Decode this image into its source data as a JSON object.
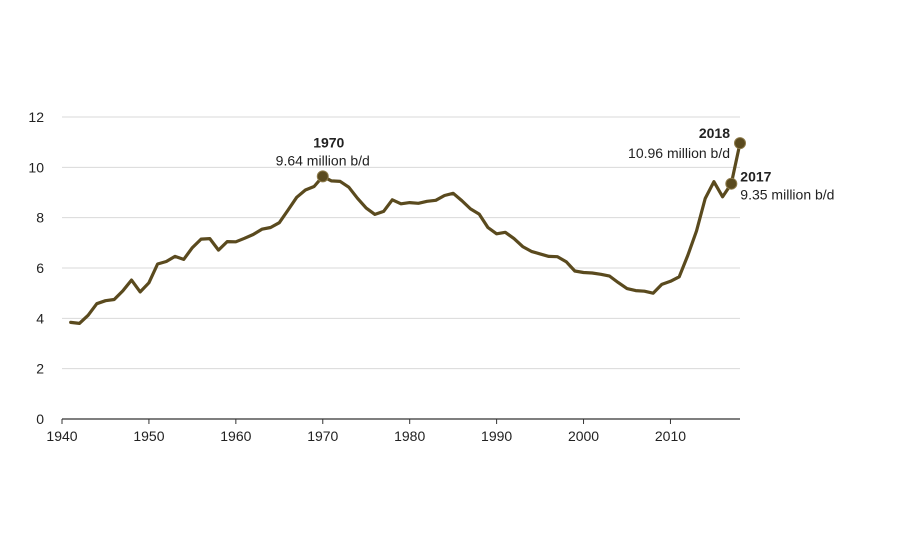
{
  "chart_data": {
    "type": "line",
    "title": "",
    "xlabel": "",
    "ylabel": "",
    "xlim": [
      1940,
      2018
    ],
    "ylim": [
      0,
      12
    ],
    "x_ticks": [
      1940,
      1950,
      1960,
      1970,
      1980,
      1990,
      2000,
      2010
    ],
    "y_ticks": [
      0,
      2,
      4,
      6,
      8,
      10,
      12
    ],
    "grid": "horizontal",
    "legend": "none",
    "line_color": "#5a4a1e",
    "grid_color": "#d9d9d9",
    "series": [
      {
        "x": [
          1941,
          1942,
          1943,
          1944,
          1945,
          1946,
          1947,
          1948,
          1949,
          1950,
          1951,
          1952,
          1953,
          1954,
          1955,
          1956,
          1957,
          1958,
          1959,
          1960,
          1961,
          1962,
          1963,
          1964,
          1965,
          1966,
          1967,
          1968,
          1969,
          1970,
          1971,
          1972,
          1973,
          1974,
          1975,
          1976,
          1977,
          1978,
          1979,
          1980,
          1981,
          1982,
          1983,
          1984,
          1985,
          1986,
          1987,
          1988,
          1989,
          1990,
          1991,
          1992,
          1993,
          1994,
          1995,
          1996,
          1997,
          1998,
          1999,
          2000,
          2001,
          2002,
          2003,
          2004,
          2005,
          2006,
          2007,
          2008,
          2009,
          2010,
          2011,
          2012,
          2013,
          2014,
          2015,
          2016,
          2017,
          2018
        ],
        "values": [
          3.84,
          3.8,
          4.12,
          4.58,
          4.7,
          4.75,
          5.09,
          5.52,
          5.05,
          5.41,
          6.16,
          6.26,
          6.46,
          6.34,
          6.81,
          7.15,
          7.17,
          6.71,
          7.05,
          7.04,
          7.18,
          7.33,
          7.54,
          7.61,
          7.8,
          8.3,
          8.81,
          9.1,
          9.24,
          9.64,
          9.46,
          9.44,
          9.21,
          8.77,
          8.38,
          8.13,
          8.25,
          8.71,
          8.55,
          8.6,
          8.57,
          8.65,
          8.69,
          8.88,
          8.97,
          8.68,
          8.35,
          8.14,
          7.61,
          7.36,
          7.42,
          7.17,
          6.85,
          6.66,
          6.56,
          6.46,
          6.45,
          6.25,
          5.88,
          5.82,
          5.8,
          5.75,
          5.68,
          5.42,
          5.18,
          5.1,
          5.08,
          5.0,
          5.35,
          5.47,
          5.65,
          6.5,
          7.47,
          8.76,
          9.43,
          8.83,
          9.35,
          10.96
        ]
      }
    ],
    "annotations": [
      {
        "year_label": "1970",
        "value_label": "9.64 million b/d",
        "x": 1970,
        "y": 9.64
      },
      {
        "year_label": "2018",
        "value_label": "10.96 million b/d",
        "x": 2018,
        "y": 10.96
      },
      {
        "year_label": "2017",
        "value_label": "9.35 million b/d",
        "x": 2017,
        "y": 9.35
      }
    ]
  }
}
